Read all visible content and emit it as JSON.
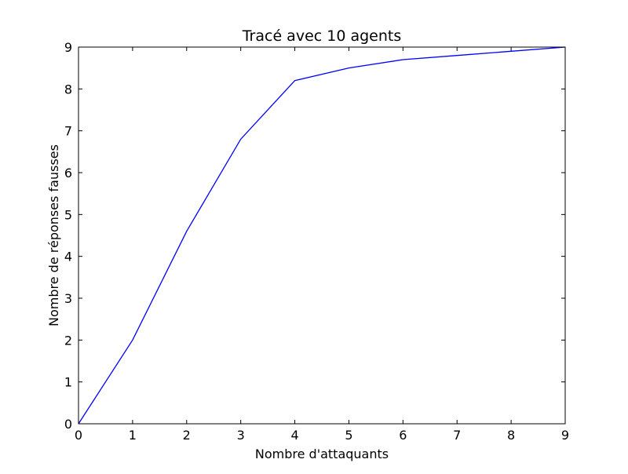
{
  "chart_data": {
    "type": "line",
    "title": "Tracé avec 10 agents",
    "xlabel": "Nombre d'attaquants",
    "ylabel": "Nombre de réponses fausses",
    "xlim": [
      0,
      9
    ],
    "ylim": [
      0,
      9
    ],
    "x_ticks": [
      "0",
      "1",
      "2",
      "3",
      "4",
      "5",
      "6",
      "7",
      "8",
      "9"
    ],
    "y_ticks": [
      "0",
      "1",
      "2",
      "3",
      "4",
      "5",
      "6",
      "7",
      "8",
      "9"
    ],
    "grid": false,
    "series": [
      {
        "color": "#0000ff",
        "x": [
          0,
          1,
          2,
          3,
          4,
          5,
          6,
          7,
          8,
          9
        ],
        "y": [
          0,
          2.0,
          4.6,
          6.8,
          8.2,
          8.5,
          8.7,
          8.8,
          8.9,
          9.0
        ]
      }
    ]
  }
}
